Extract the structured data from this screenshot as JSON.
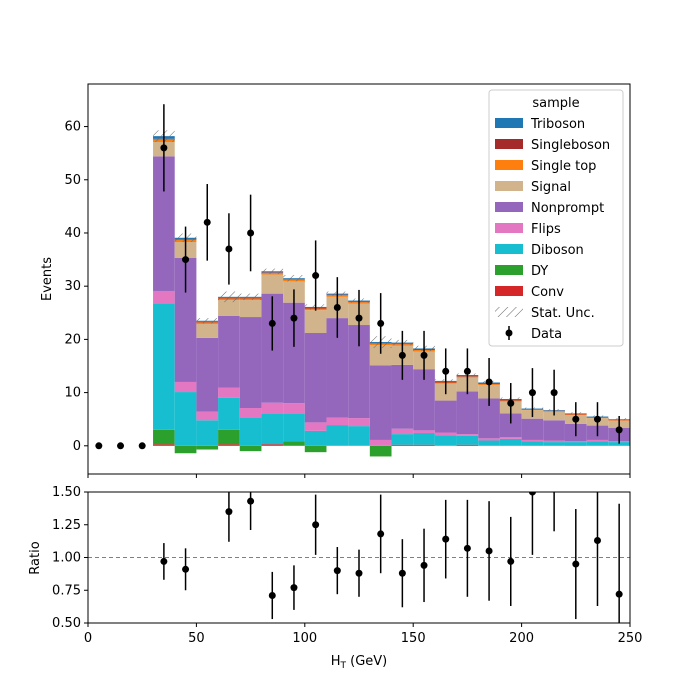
{
  "chart_data": {
    "type": "bar",
    "stacked": true,
    "xlabel": "H$_T$ (GeV)",
    "xlabel_main": "H",
    "xlabel_sub": "T",
    "xlabel_unit": " (GeV)",
    "top_ylabel": "Events",
    "ratio_ylabel": "Ratio",
    "xlim": [
      0,
      250
    ],
    "top_ylim": [
      -5.3,
      68
    ],
    "ratio_ylim": [
      0.5,
      1.5
    ],
    "x_ticks": [
      "0",
      "50",
      "100",
      "150",
      "200",
      "250"
    ],
    "x_tick_values": [
      0,
      50,
      100,
      150,
      200,
      250
    ],
    "top_y_ticks": [
      "0",
      "10",
      "20",
      "30",
      "40",
      "50",
      "60"
    ],
    "top_y_tick_values": [
      0,
      10,
      20,
      30,
      40,
      50,
      60
    ],
    "ratio_y_ticks": [
      "0.50",
      "0.75",
      "1.00",
      "1.25",
      "1.50"
    ],
    "ratio_y_tick_values": [
      0.5,
      0.75,
      1.0,
      1.25,
      1.5
    ],
    "ratio_reference_line": 1.0,
    "bin_edges": [
      0,
      10,
      20,
      30,
      40,
      50,
      60,
      70,
      80,
      90,
      100,
      110,
      120,
      130,
      140,
      150,
      160,
      170,
      180,
      190,
      200,
      210,
      220,
      230,
      240,
      250
    ],
    "legend": {
      "title": "sample",
      "placement": "top-right",
      "entries": [
        "Triboson",
        "Singleboson",
        "Single top",
        "Signal",
        "Nonprompt",
        "Flips",
        "Diboson",
        "DY",
        "Conv",
        "Stat. Unc.",
        "Data"
      ]
    },
    "series": [
      {
        "name": "Conv",
        "color": "#d62728",
        "values": [
          0,
          0,
          0,
          0.3,
          0,
          0,
          0.3,
          0,
          0.3,
          0,
          0,
          0,
          0,
          0,
          0.2,
          0.2,
          0,
          0.2,
          0,
          0,
          0,
          0,
          0.1,
          0,
          0
        ]
      },
      {
        "name": "DY",
        "color": "#2ca02c",
        "values": [
          0,
          0,
          0,
          2.7,
          -1.4,
          -0.7,
          2.7,
          -1.0,
          0,
          0.8,
          -1.2,
          0,
          0,
          -2.0,
          0,
          0,
          0,
          0,
          0,
          0,
          0,
          0,
          0,
          0,
          0
        ]
      },
      {
        "name": "Diboson",
        "color": "#17becf",
        "values": [
          0,
          0,
          0,
          23.8,
          10.1,
          4.8,
          6.0,
          5.3,
          5.8,
          5.3,
          2.8,
          3.9,
          3.7,
          0,
          2.0,
          2.2,
          2.0,
          1.7,
          1.0,
          1.3,
          0.8,
          0.7,
          0.6,
          0.8,
          0.7
        ]
      },
      {
        "name": "Flips",
        "color": "#e377c2",
        "values": [
          0,
          0,
          0,
          2.3,
          1.9,
          1.6,
          1.9,
          1.8,
          2.0,
          1.9,
          1.6,
          1.4,
          1.5,
          1.1,
          1.0,
          0.5,
          0.5,
          0.3,
          0.4,
          0.3,
          0.3,
          0.3,
          0.2,
          0.3,
          0.2
        ]
      },
      {
        "name": "Nonprompt",
        "color": "#9467bd",
        "values": [
          0,
          0,
          0,
          25.3,
          23.3,
          13.9,
          13.5,
          17.1,
          20.5,
          18.9,
          16.8,
          18.7,
          17.5,
          14.0,
          12.0,
          11.5,
          6.0,
          8.0,
          7.5,
          4.5,
          4.0,
          3.8,
          3.2,
          2.7,
          2.5
        ]
      },
      {
        "name": "Signal",
        "color": "#d2b48c",
        "values": [
          0,
          0,
          0,
          2.7,
          3.0,
          2.6,
          3.0,
          3.2,
          3.6,
          4.0,
          4.3,
          4.0,
          4.0,
          3.8,
          3.6,
          3.3,
          3.2,
          2.6,
          2.5,
          2.2,
          1.6,
          1.6,
          1.7,
          1.4,
          1.3
        ]
      },
      {
        "name": "Single top",
        "color": "#ff7f0e",
        "values": [
          0,
          0,
          0,
          0.5,
          0.4,
          0.3,
          0.3,
          0.3,
          0.3,
          0.3,
          0.3,
          0.3,
          0.3,
          0.3,
          0.3,
          0.3,
          0.2,
          0.2,
          0.2,
          0.2,
          0.1,
          0.1,
          0.1,
          0.1,
          0.1
        ]
      },
      {
        "name": "Singleboson",
        "color": "#a52a2a",
        "values": [
          0,
          0,
          0,
          0.1,
          0.1,
          0.1,
          0.1,
          0.1,
          0.1,
          0.1,
          0.1,
          0.1,
          0.1,
          0.1,
          0.1,
          0.1,
          0.1,
          0.1,
          0.1,
          0.1,
          0.1,
          0.1,
          0.1,
          0.1,
          0.1
        ]
      },
      {
        "name": "Triboson",
        "color": "#1f77b4",
        "values": [
          0,
          0,
          0,
          0.5,
          0.3,
          0.2,
          0.2,
          0.2,
          0.2,
          0.2,
          0.2,
          0.2,
          0.2,
          0.2,
          0.2,
          0.2,
          0.2,
          0.2,
          0.2,
          0.2,
          0.1,
          0.1,
          0.1,
          0.1,
          0.1
        ]
      }
    ],
    "stat_unc": [
      0,
      0,
      0,
      2.2,
      1.6,
      1.0,
      2.0,
      1.2,
      1.0,
      1.2,
      1.0,
      0.8,
      0.8,
      2.2,
      1.0,
      1.0,
      0.6,
      0.6,
      0.6,
      0.6,
      0.4,
      0.4,
      0.4,
      0.4,
      0.4
    ],
    "data": {
      "name": "Data",
      "x": [
        5,
        15,
        25,
        35,
        45,
        55,
        65,
        75,
        85,
        95,
        105,
        115,
        125,
        135,
        145,
        155,
        165,
        175,
        185,
        195,
        205,
        215,
        225,
        235,
        245
      ],
      "y": [
        0,
        0,
        0,
        56,
        35,
        42,
        37,
        40,
        23,
        24,
        32,
        26,
        24,
        23,
        17,
        17,
        14,
        14,
        12,
        8,
        10,
        10,
        5,
        5,
        3
      ],
      "err": [
        0,
        0,
        0,
        8.2,
        6.2,
        7.2,
        6.7,
        7.2,
        5.1,
        5.4,
        6.6,
        5.7,
        5.3,
        5.7,
        4.6,
        4.6,
        4.3,
        4.3,
        4.5,
        3.8,
        4.6,
        4.3,
        3.2,
        3.2,
        2.6
      ]
    },
    "ratio": {
      "x": [
        35,
        45,
        65,
        75,
        85,
        95,
        105,
        115,
        125,
        135,
        145,
        155,
        165,
        175,
        185,
        195,
        205,
        215,
        225,
        235,
        245
      ],
      "y": [
        0.97,
        0.91,
        1.35,
        1.43,
        0.71,
        0.77,
        1.25,
        0.9,
        0.88,
        1.18,
        0.88,
        0.94,
        1.14,
        1.07,
        1.05,
        0.97,
        1.5,
        1.55,
        0.95,
        1.13,
        0.72
      ],
      "err": [
        0.14,
        0.16,
        0.23,
        0.22,
        0.18,
        0.17,
        0.23,
        0.18,
        0.18,
        0.3,
        0.26,
        0.28,
        0.3,
        0.37,
        0.38,
        0.34,
        0.48,
        0.35,
        0.42,
        0.5,
        0.69
      ]
    }
  }
}
